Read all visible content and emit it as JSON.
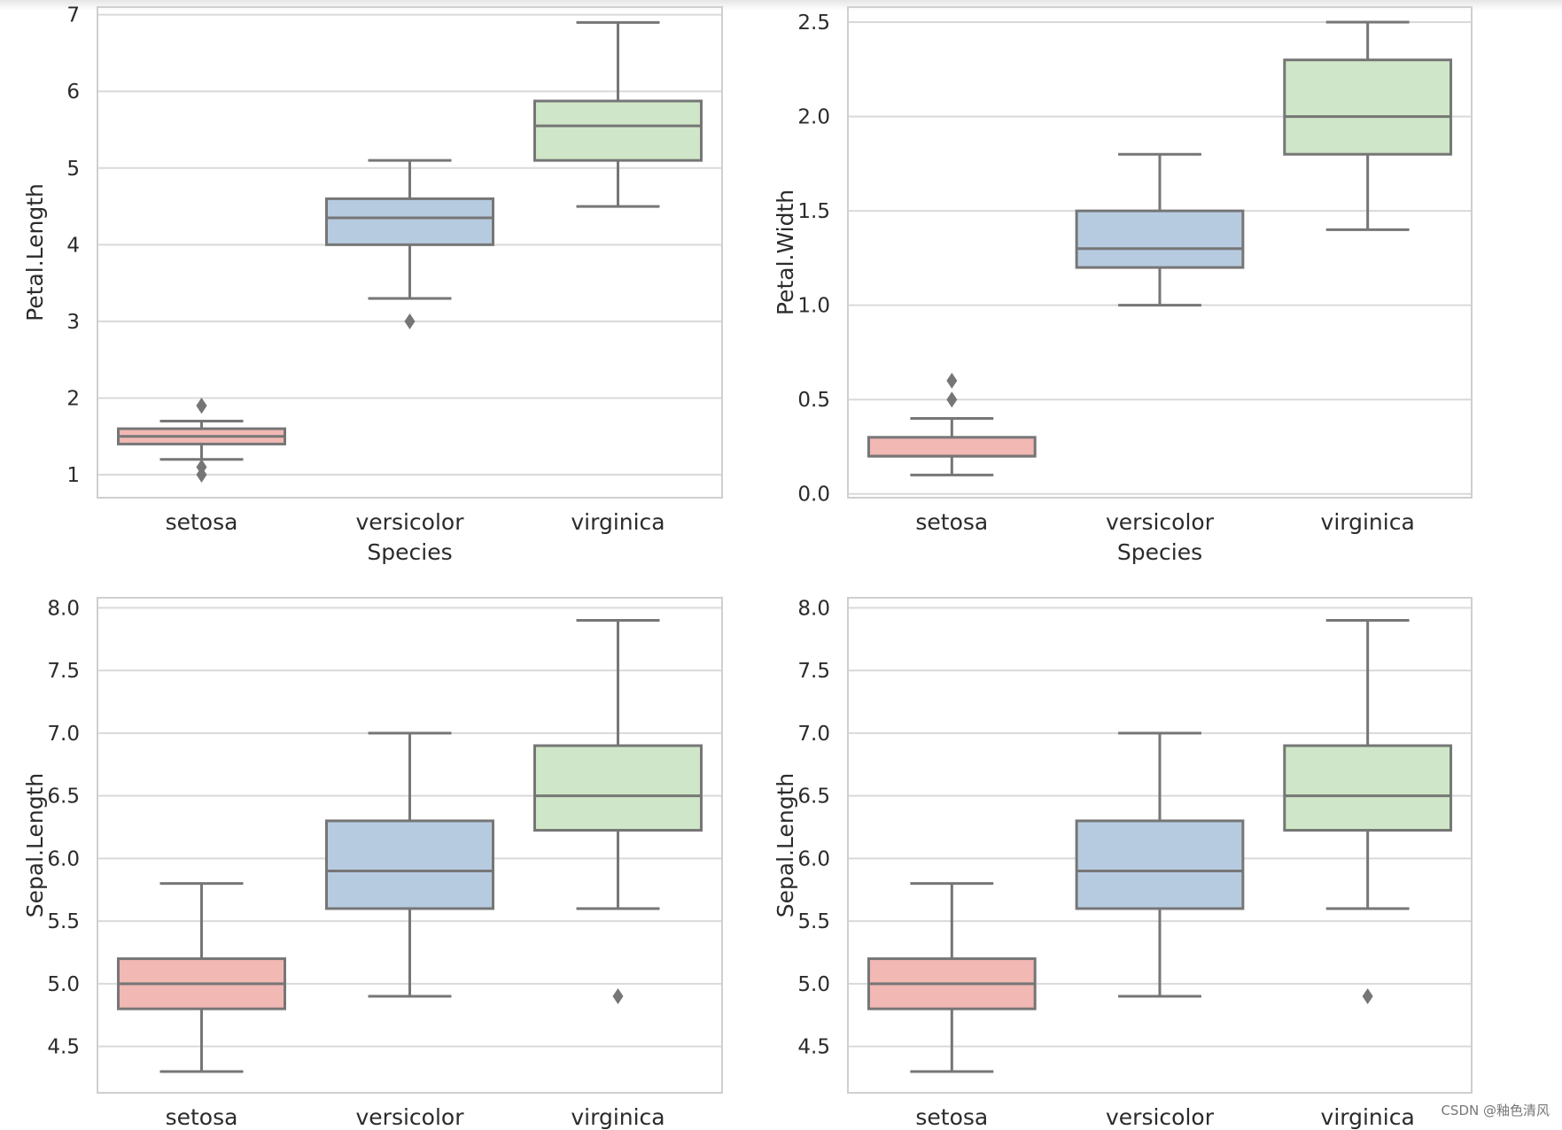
{
  "chart_data": [
    {
      "type": "box",
      "title": "",
      "xlabel": "Species",
      "ylabel": "Petal.Length",
      "categories": [
        "setosa",
        "versicolor",
        "virginica"
      ],
      "ylim": [
        0.7,
        7.1
      ],
      "yticks": [
        1,
        2,
        3,
        4,
        5,
        6,
        7
      ],
      "ytick_labels": [
        "1",
        "2",
        "3",
        "4",
        "5",
        "6",
        "7"
      ],
      "grid": true,
      "boxes": [
        {
          "category": "setosa",
          "whisker_low": 1.2,
          "q1": 1.4,
          "median": 1.5,
          "q3": 1.6,
          "whisker_high": 1.7,
          "outliers": [
            1.9,
            1.9,
            1.1,
            1.0
          ],
          "color": "#f2b8b4"
        },
        {
          "category": "versicolor",
          "whisker_low": 3.3,
          "q1": 4.0,
          "median": 4.35,
          "q3": 4.6,
          "whisker_high": 5.1,
          "outliers": [
            3.0
          ],
          "color": "#b7cbe0"
        },
        {
          "category": "virginica",
          "whisker_low": 4.5,
          "q1": 5.1,
          "median": 5.55,
          "q3": 5.875,
          "whisker_high": 6.9,
          "outliers": [],
          "color": "#cfe7c8"
        }
      ]
    },
    {
      "type": "box",
      "title": "",
      "xlabel": "Species",
      "ylabel": "Petal.Width",
      "categories": [
        "setosa",
        "versicolor",
        "virginica"
      ],
      "ylim": [
        -0.02,
        2.58
      ],
      "yticks": [
        0,
        0.5,
        1,
        1.5,
        2,
        2.5
      ],
      "ytick_labels": [
        "0.0",
        "0.5",
        "1.0",
        "1.5",
        "2.0",
        "2.5"
      ],
      "grid": true,
      "boxes": [
        {
          "category": "setosa",
          "whisker_low": 0.1,
          "q1": 0.2,
          "median": 0.2,
          "q3": 0.3,
          "whisker_high": 0.4,
          "outliers": [
            0.6,
            0.5
          ],
          "color": "#f2b8b4"
        },
        {
          "category": "versicolor",
          "whisker_low": 1.0,
          "q1": 1.2,
          "median": 1.3,
          "q3": 1.5,
          "whisker_high": 1.8,
          "outliers": [],
          "color": "#b7cbe0"
        },
        {
          "category": "virginica",
          "whisker_low": 1.4,
          "q1": 1.8,
          "median": 2.0,
          "q3": 2.3,
          "whisker_high": 2.5,
          "outliers": [],
          "color": "#cfe7c8"
        }
      ]
    },
    {
      "type": "box",
      "title": "",
      "xlabel": "",
      "ylabel": "Sepal.Length",
      "categories": [
        "setosa",
        "versicolor",
        "virginica"
      ],
      "ylim": [
        4.13,
        8.08
      ],
      "yticks": [
        4.5,
        5,
        5.5,
        6,
        6.5,
        7,
        7.5,
        8
      ],
      "ytick_labels": [
        "4.5",
        "5.0",
        "5.5",
        "6.0",
        "6.5",
        "7.0",
        "7.5",
        "8.0"
      ],
      "grid": true,
      "boxes": [
        {
          "category": "setosa",
          "whisker_low": 4.3,
          "q1": 4.8,
          "median": 5.0,
          "q3": 5.2,
          "whisker_high": 5.8,
          "outliers": [],
          "color": "#f2b8b4"
        },
        {
          "category": "versicolor",
          "whisker_low": 4.9,
          "q1": 5.6,
          "median": 5.9,
          "q3": 6.3,
          "whisker_high": 7.0,
          "outliers": [],
          "color": "#b7cbe0"
        },
        {
          "category": "virginica",
          "whisker_low": 5.6,
          "q1": 6.225,
          "median": 6.5,
          "q3": 6.9,
          "whisker_high": 7.9,
          "outliers": [
            4.9
          ],
          "color": "#cfe7c8"
        }
      ]
    },
    {
      "type": "box",
      "title": "",
      "xlabel": "",
      "ylabel": "Sepal.Length",
      "categories": [
        "setosa",
        "versicolor",
        "virginica"
      ],
      "ylim": [
        4.13,
        8.08
      ],
      "yticks": [
        4.5,
        5,
        5.5,
        6,
        6.5,
        7,
        7.5,
        8
      ],
      "ytick_labels": [
        "4.5",
        "5.0",
        "5.5",
        "6.0",
        "6.5",
        "7.0",
        "7.5",
        "8.0"
      ],
      "grid": true,
      "boxes": [
        {
          "category": "setosa",
          "whisker_low": 4.3,
          "q1": 4.8,
          "median": 5.0,
          "q3": 5.2,
          "whisker_high": 5.8,
          "outliers": [],
          "color": "#f2b8b4"
        },
        {
          "category": "versicolor",
          "whisker_low": 4.9,
          "q1": 5.6,
          "median": 5.9,
          "q3": 6.3,
          "whisker_high": 7.0,
          "outliers": [],
          "color": "#b7cbe0"
        },
        {
          "category": "virginica",
          "whisker_low": 5.6,
          "q1": 6.225,
          "median": 6.5,
          "q3": 6.9,
          "whisker_high": 7.9,
          "outliers": [
            4.9
          ],
          "color": "#cfe7c8"
        }
      ]
    }
  ],
  "colors": {
    "grid": "#d9d9d9",
    "frame": "#cfcfcf",
    "line": "#767676",
    "text": "#2b2b2b"
  },
  "watermark": "CSDN @釉色清风"
}
